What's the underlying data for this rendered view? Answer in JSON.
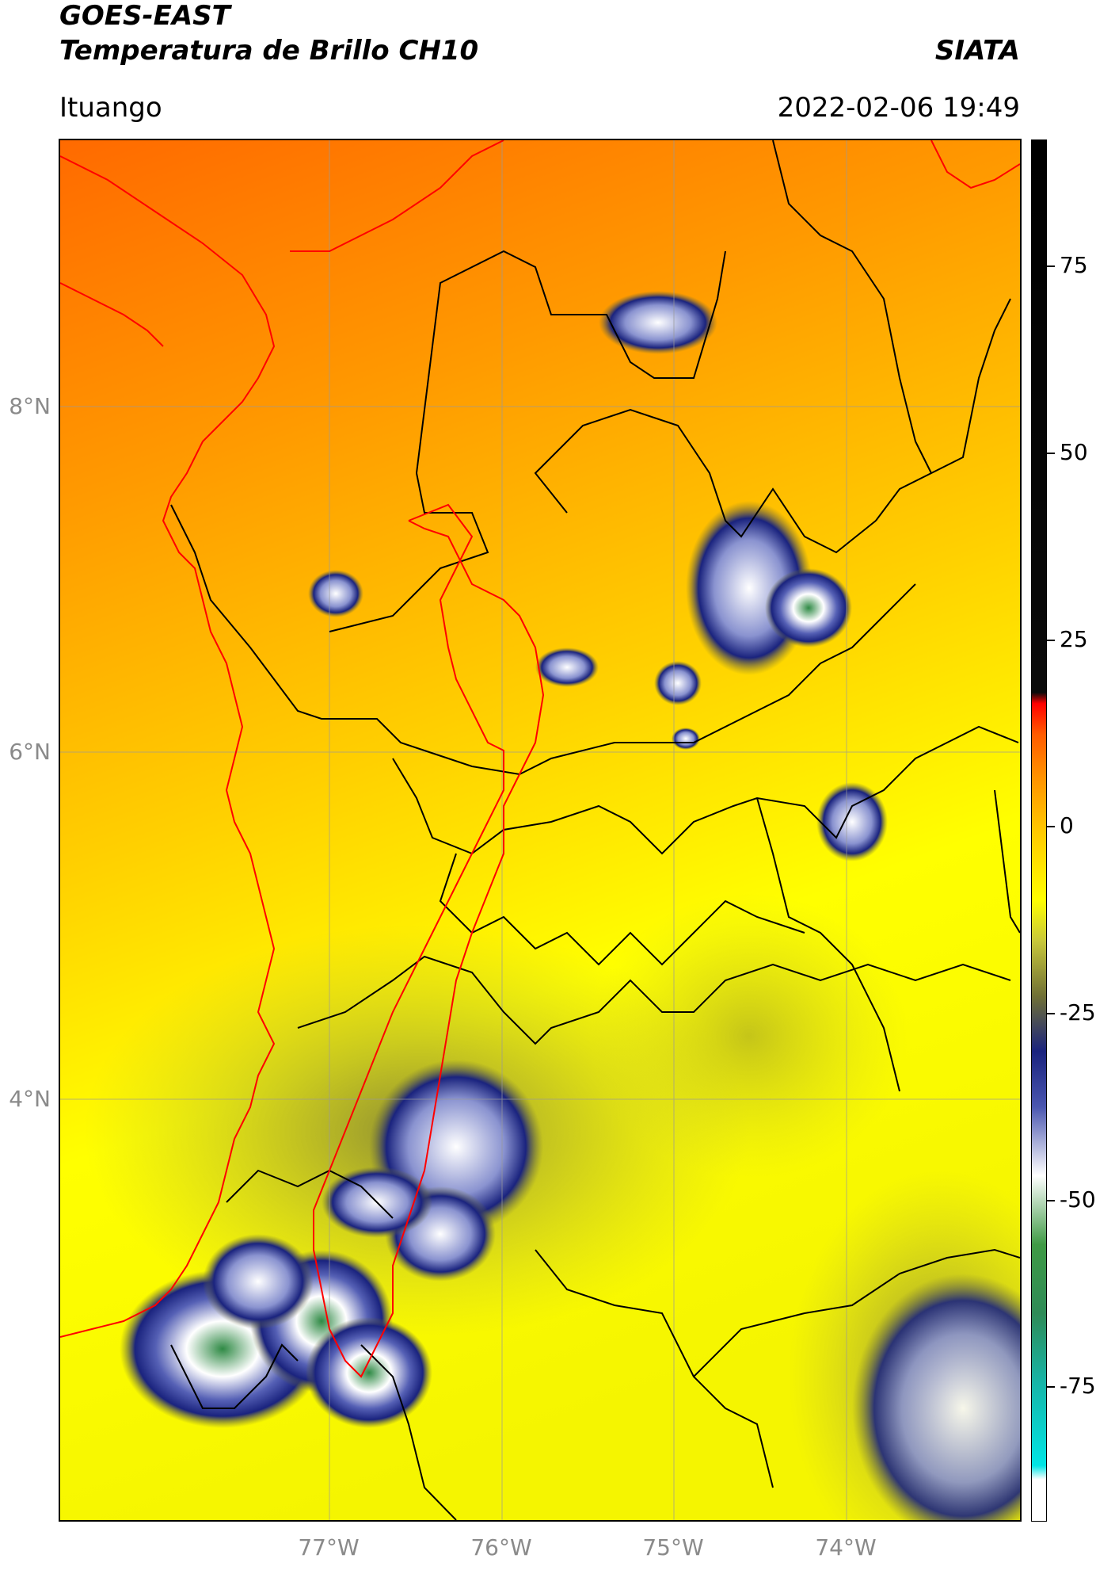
{
  "header": {
    "title_line1": "GOES-EAST",
    "title_line2": "Temperatura de Brillo CH10",
    "organization": "SIATA",
    "station": "Ituango",
    "timestamp": "2022-02-06 19:49"
  },
  "map": {
    "lat_labels": [
      "8°N",
      "6°N",
      "4°N"
    ],
    "lon_labels": [
      "77°W",
      "76°W",
      "75°W",
      "74°W"
    ],
    "lat_values": [
      8,
      6,
      4
    ],
    "lon_values": [
      -77,
      -76,
      -75,
      -74
    ],
    "border_colors": {
      "country": "#000000",
      "watershed": "#ff0000"
    },
    "gridlines": true
  },
  "colorbar": {
    "labels": [
      "75",
      "50",
      "25",
      "0",
      "-25",
      "-50",
      "-75"
    ],
    "values": [
      75,
      50,
      25,
      0,
      -25,
      -50,
      -75
    ],
    "range": [
      -93,
      92
    ],
    "colors": {
      "warm_top": "#000000",
      "red": "#ff0000",
      "orange": "#ff9000",
      "yellow": "#ffff00",
      "olive": "#707035",
      "navy": "#1a237e",
      "white": "#ffffff",
      "green": "#3f9a45",
      "cyan": "#00e5e5"
    }
  }
}
